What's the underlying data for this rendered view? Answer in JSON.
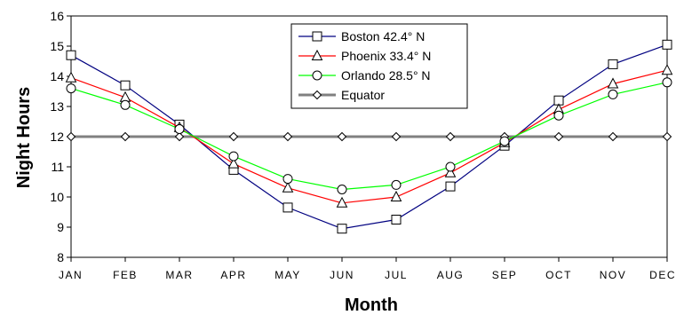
{
  "chart_data": {
    "type": "line",
    "xlabel": "Month",
    "ylabel": "Night Hours",
    "categories": [
      "JAN",
      "FEB",
      "MAR",
      "APR",
      "MAY",
      "JUN",
      "JUL",
      "AUG",
      "SEP",
      "OCT",
      "NOV",
      "DEC"
    ],
    "ylim": [
      8,
      16
    ],
    "yticks": [
      8,
      9,
      10,
      11,
      12,
      13,
      14,
      15,
      16
    ],
    "grid": false,
    "legend_position": "top-center",
    "series": [
      {
        "name": "Boston 42.4° N",
        "color": "#000080",
        "marker": "square",
        "values": [
          14.7,
          13.7,
          12.4,
          10.9,
          9.65,
          8.95,
          9.25,
          10.35,
          11.7,
          13.2,
          14.4,
          15.05
        ]
      },
      {
        "name": "Phoenix 33.4° N",
        "color": "#ff0000",
        "marker": "triangle",
        "values": [
          13.95,
          13.3,
          12.3,
          11.1,
          10.3,
          9.8,
          10.0,
          10.8,
          11.8,
          12.9,
          13.75,
          14.2
        ]
      },
      {
        "name": "Orlando 28.5° N",
        "color": "#00ff00",
        "marker": "circle",
        "values": [
          13.6,
          13.05,
          12.25,
          11.35,
          10.6,
          10.25,
          10.4,
          11.0,
          11.85,
          12.7,
          13.4,
          13.8
        ]
      },
      {
        "name": "Equator",
        "color": "#808080",
        "marker": "diamond",
        "values": [
          12,
          12,
          12,
          12,
          12,
          12,
          12,
          12,
          12,
          12,
          12,
          12
        ]
      }
    ]
  }
}
